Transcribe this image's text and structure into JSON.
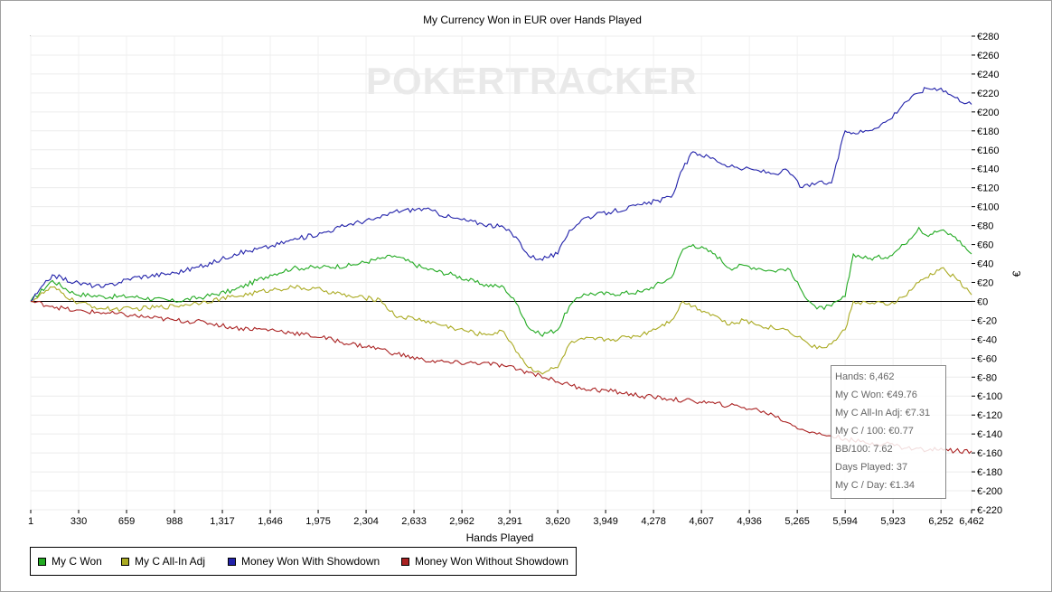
{
  "chart_data": {
    "type": "line",
    "title": "My Currency Won in EUR over Hands Played",
    "xlabel": "Hands Played",
    "ylabel": "€",
    "xlim": [
      1,
      6462
    ],
    "ylim": [
      -220,
      280
    ],
    "x_ticks": [
      "1",
      "330",
      "659",
      "988",
      "1,317",
      "1,646",
      "1,975",
      "2,304",
      "2,633",
      "2,962",
      "3,291",
      "3,620",
      "3,949",
      "4,278",
      "4,607",
      "4,936",
      "5,265",
      "5,594",
      "5,923",
      "6,252",
      "6,462"
    ],
    "x_tick_values": [
      1,
      330,
      659,
      988,
      1317,
      1646,
      1975,
      2304,
      2633,
      2962,
      3291,
      3620,
      3949,
      4278,
      4607,
      4936,
      5265,
      5594,
      5923,
      6252,
      6462
    ],
    "y_ticks": [
      "€280",
      "€260",
      "€240",
      "€220",
      "€200",
      "€180",
      "€160",
      "€140",
      "€120",
      "€100",
      "€80",
      "€60",
      "€40",
      "€20",
      "€0",
      "€-20",
      "€-40",
      "€-60",
      "€-80",
      "€-100",
      "€-120",
      "€-140",
      "€-160",
      "€-180",
      "€-200",
      "€-220"
    ],
    "y_tick_values": [
      280,
      260,
      240,
      220,
      200,
      180,
      160,
      140,
      120,
      100,
      80,
      60,
      40,
      20,
      0,
      -20,
      -40,
      -60,
      -80,
      -100,
      -120,
      -140,
      -160,
      -180,
      -200,
      -220
    ],
    "grid": true,
    "legend_position": "bottom-left",
    "watermark": "POKERTRACKER",
    "series": [
      {
        "name": "My C Won",
        "color": "#22aa22",
        "x": [
          1,
          150,
          300,
          500,
          700,
          988,
          1200,
          1400,
          1646,
          1800,
          2000,
          2200,
          2400,
          2500,
          2700,
          2900,
          3100,
          3250,
          3350,
          3420,
          3500,
          3620,
          3700,
          3800,
          4000,
          4200,
          4400,
          4480,
          4550,
          4700,
          4800,
          4900,
          5000,
          5100,
          5200,
          5300,
          5400,
          5500,
          5594,
          5650,
          5750,
          5900,
          6000,
          6100,
          6150,
          6252,
          6350,
          6462
        ],
        "values": [
          0,
          22,
          8,
          5,
          5,
          0,
          5,
          12,
          28,
          35,
          36,
          38,
          45,
          48,
          35,
          28,
          18,
          15,
          -5,
          -28,
          -35,
          -30,
          -5,
          8,
          8,
          10,
          25,
          55,
          60,
          50,
          35,
          38,
          35,
          32,
          35,
          10,
          -8,
          -5,
          5,
          50,
          45,
          48,
          60,
          78,
          70,
          75,
          68,
          50
        ]
      },
      {
        "name": "My C All-In Adj",
        "color": "#aaaa22",
        "x": [
          1,
          150,
          300,
          500,
          700,
          988,
          1200,
          1400,
          1646,
          1800,
          2000,
          2200,
          2400,
          2500,
          2700,
          2900,
          3100,
          3250,
          3350,
          3420,
          3500,
          3620,
          3700,
          3800,
          4000,
          4200,
          4400,
          4480,
          4550,
          4700,
          4800,
          4900,
          5000,
          5100,
          5200,
          5300,
          5400,
          5500,
          5594,
          5650,
          5750,
          5900,
          6000,
          6100,
          6150,
          6252,
          6350,
          6462
        ],
        "values": [
          0,
          15,
          0,
          -8,
          -8,
          -5,
          0,
          5,
          12,
          15,
          12,
          5,
          2,
          -15,
          -20,
          -28,
          -35,
          -32,
          -55,
          -70,
          -75,
          -70,
          -45,
          -40,
          -40,
          -35,
          -20,
          0,
          -5,
          -15,
          -25,
          -20,
          -25,
          -28,
          -30,
          -40,
          -50,
          -45,
          -30,
          0,
          -2,
          -3,
          5,
          20,
          25,
          35,
          25,
          7
        ]
      },
      {
        "name": "Money Won With Showdown",
        "color": "#2222aa",
        "x": [
          1,
          150,
          300,
          500,
          700,
          988,
          1200,
          1400,
          1646,
          1800,
          2000,
          2200,
          2400,
          2500,
          2700,
          2900,
          3100,
          3250,
          3350,
          3420,
          3500,
          3620,
          3700,
          3800,
          4000,
          4200,
          4400,
          4480,
          4550,
          4700,
          4800,
          4900,
          5000,
          5100,
          5200,
          5300,
          5400,
          5500,
          5594,
          5650,
          5750,
          5900,
          6000,
          6100,
          6150,
          6252,
          6350,
          6462
        ],
        "values": [
          0,
          28,
          20,
          15,
          25,
          30,
          38,
          50,
          58,
          65,
          72,
          82,
          88,
          95,
          98,
          88,
          82,
          78,
          65,
          48,
          45,
          50,
          75,
          88,
          95,
          102,
          110,
          140,
          158,
          150,
          142,
          140,
          138,
          135,
          138,
          120,
          125,
          125,
          180,
          178,
          180,
          192,
          210,
          220,
          225,
          225,
          215,
          208
        ]
      },
      {
        "name": "Money Won Without Showdown",
        "color": "#aa2222",
        "x": [
          1,
          150,
          300,
          500,
          700,
          988,
          1200,
          1400,
          1646,
          1800,
          2000,
          2200,
          2400,
          2500,
          2700,
          2900,
          3100,
          3250,
          3350,
          3420,
          3500,
          3620,
          3700,
          3800,
          4000,
          4200,
          4400,
          4480,
          4550,
          4700,
          4800,
          4900,
          5000,
          5100,
          5200,
          5300,
          5400,
          5500,
          5594,
          5650,
          5750,
          5900,
          6000,
          6100,
          6150,
          6252,
          6350,
          6462
        ],
        "values": [
          0,
          -5,
          -10,
          -12,
          -15,
          -20,
          -22,
          -28,
          -30,
          -33,
          -38,
          -45,
          -50,
          -55,
          -62,
          -65,
          -65,
          -68,
          -72,
          -75,
          -78,
          -85,
          -88,
          -92,
          -95,
          -100,
          -103,
          -105,
          -105,
          -108,
          -110,
          -112,
          -115,
          -120,
          -128,
          -135,
          -140,
          -142,
          -145,
          -147,
          -150,
          -150,
          -155,
          -155,
          -158,
          -155,
          -158,
          -158
        ]
      }
    ]
  },
  "legend": {
    "items": [
      {
        "label": "My C Won",
        "color": "#22aa22"
      },
      {
        "label": "My C All-In Adj",
        "color": "#aaaa22"
      },
      {
        "label": "Money Won With Showdown",
        "color": "#2222aa"
      },
      {
        "label": "Money Won Without Showdown",
        "color": "#aa2222"
      }
    ]
  },
  "tooltip": {
    "lines": [
      "Hands: 6,462",
      "My C Won: €49.76",
      "My C All-In Adj: €7.31",
      "My C / 100: €0.77",
      "BB/100: 7.62",
      "Days Played: 37",
      "My C / Day: €1.34"
    ]
  }
}
